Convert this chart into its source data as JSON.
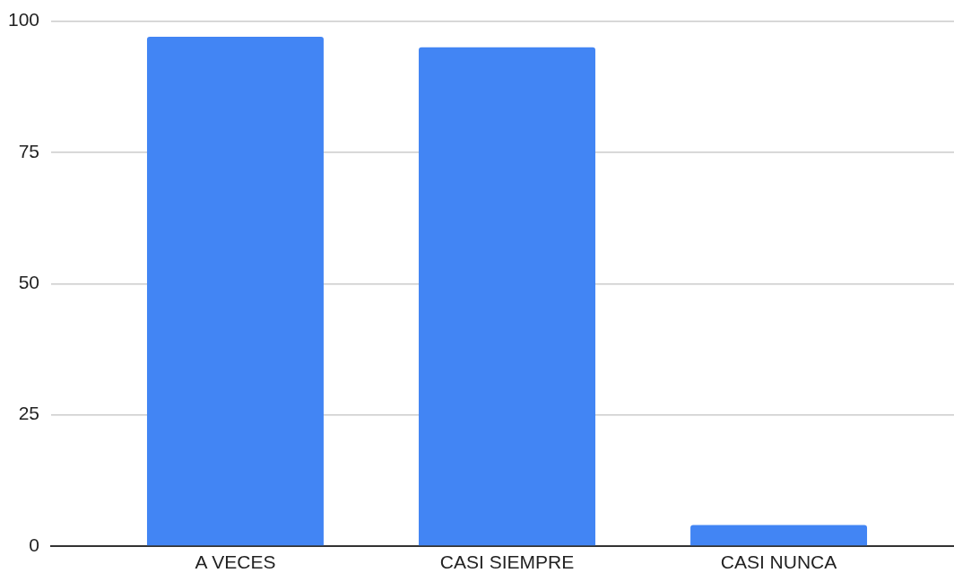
{
  "chart_data": {
    "type": "bar",
    "categories": [
      "A VECES",
      "CASI SIEMPRE",
      "CASI NUNCA"
    ],
    "values": [
      97,
      95,
      4
    ],
    "color": "#4285f4",
    "ylim": [
      0,
      100
    ],
    "yticks": [
      0,
      25,
      50,
      75,
      100
    ],
    "grid": "y"
  }
}
